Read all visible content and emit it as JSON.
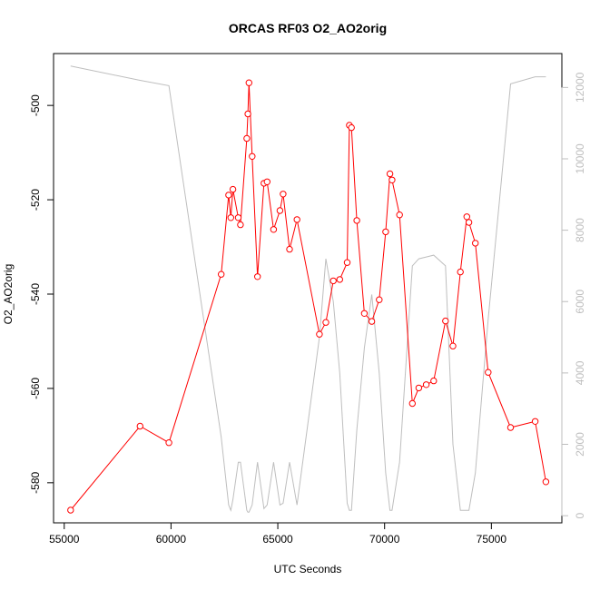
{
  "chart_data": {
    "type": "line",
    "title": "ORCAS RF03 O2_AO2orig",
    "xlabel": "UTC Seconds",
    "ylabel": "O2_AO2orig",
    "xlim": [
      54500,
      78300
    ],
    "ylim": [
      -588.5,
      -489
    ],
    "xticks": [
      55000,
      60000,
      65000,
      70000,
      75000
    ],
    "yticks": [
      -580,
      -560,
      -540,
      -520,
      -500
    ],
    "y2lim": [
      -200,
      12950
    ],
    "y2ticks": [
      0,
      2000,
      4000,
      6000,
      8000,
      10000,
      12000
    ],
    "series": [
      {
        "axis": "left",
        "color": "#ff0000",
        "markers": "open-circle",
        "x": [
          55300,
          58550,
          59900,
          62350,
          62700,
          62800,
          62900,
          63150,
          63250,
          63550,
          63600,
          63650,
          63800,
          64050,
          64350,
          64500,
          64800,
          65100,
          65250,
          65550,
          65900,
          66950,
          67250,
          67600,
          67900,
          68250,
          68350,
          68450,
          68700,
          69050,
          69400,
          69750,
          70050,
          70250,
          70350,
          70700,
          71300,
          71600,
          71950,
          72300,
          72850,
          73200,
          73550,
          73850,
          73950,
          74250,
          74850,
          75900,
          77050,
          77550
        ],
        "y": [
          -585.8,
          -568.0,
          -571.5,
          -535.8,
          -519.0,
          -523.8,
          -517.8,
          -523.8,
          -525.3,
          -507.0,
          -501.8,
          -495.2,
          -510.8,
          -536.3,
          -516.5,
          -516.2,
          -526.3,
          -522.3,
          -518.8,
          -530.5,
          -524.2,
          -548.5,
          -546.0,
          -537.2,
          -536.9,
          -533.3,
          -504.2,
          -504.7,
          -524.4,
          -544.1,
          -545.8,
          -541.2,
          -526.8,
          -514.5,
          -515.8,
          -523.2,
          -563.2,
          -559.9,
          -559.2,
          -558.4,
          -545.7,
          -551.0,
          -535.3,
          -523.6,
          -524.8,
          -529.2,
          -556.6,
          -568.3,
          -567.0,
          -579.8
        ]
      },
      {
        "axis": "right",
        "color": "#bebebe",
        "markers": "none",
        "x": [
          55300,
          58550,
          59900,
          62350,
          62700,
          62800,
          62900,
          63150,
          63250,
          63550,
          63600,
          63650,
          63800,
          64050,
          64350,
          64500,
          64800,
          65100,
          65250,
          65550,
          65900,
          66950,
          67250,
          67600,
          67900,
          68250,
          68350,
          68450,
          68700,
          69050,
          69400,
          69750,
          70050,
          70250,
          70350,
          70700,
          71300,
          71600,
          71950,
          72300,
          72850,
          73200,
          73550,
          73850,
          73950,
          74250,
          74850,
          75900,
          77050,
          77550
        ],
        "y": [
          12600,
          12200,
          12050,
          2200,
          300,
          150,
          450,
          1500,
          1500,
          150,
          100,
          100,
          300,
          1500,
          200,
          300,
          1500,
          300,
          350,
          1500,
          300,
          5000,
          7200,
          6000,
          4000,
          350,
          150,
          150,
          2400,
          4700,
          6200,
          4000,
          1200,
          150,
          150,
          1500,
          7000,
          7200,
          7250,
          7300,
          7000,
          2000,
          150,
          150,
          150,
          1200,
          5500,
          12100,
          12300,
          12300
        ]
      }
    ]
  }
}
